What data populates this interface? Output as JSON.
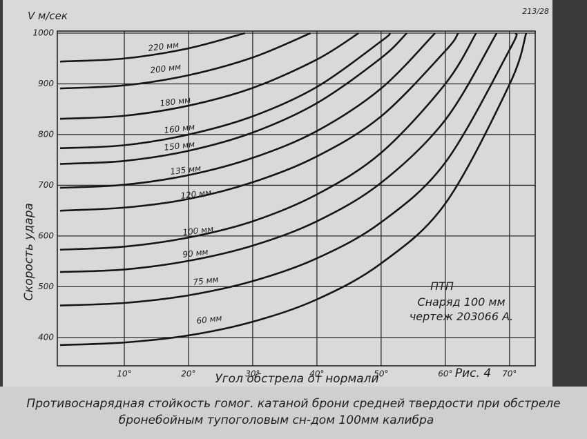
{
  "chart_data": {
    "type": "line",
    "title": "Противоснарядная стойкость гомог. катаной брони средней твердости при обстреле",
    "subtitle": "бронебойным тупоголовым сн-дом 100мм калибра",
    "sheet_number": "213/28",
    "y_axis_unit": "V м/сек",
    "y_label": "Скорость удара",
    "x_label": "Угол обстрела от нормали",
    "figure_label": "Рис. 4",
    "annotation": [
      "ПТП",
      "Снаряд 100 мм",
      "чертеж 203066 А."
    ],
    "xlim": [
      0,
      74
    ],
    "ylim": [
      344,
      1000
    ],
    "xticks": [
      {
        "value": 10,
        "label": "10°"
      },
      {
        "value": 20,
        "label": "20°"
      },
      {
        "value": 30,
        "label": "30°"
      },
      {
        "value": 40,
        "label": "40°"
      },
      {
        "value": 50,
        "label": "50°"
      },
      {
        "value": 60,
        "label": "60°"
      },
      {
        "value": 70,
        "label": "70°"
      }
    ],
    "yticks": [
      400,
      500,
      600,
      700,
      800,
      900,
      1000
    ],
    "grid": true,
    "series": [
      {
        "name": "220 мм",
        "color": "#151515",
        "x": [
          0,
          10,
          20,
          28.8
        ],
        "values": [
          944,
          950,
          970,
          1000
        ]
      },
      {
        "name": "200 мм",
        "color": "#151515",
        "x": [
          0,
          10,
          20,
          30,
          39
        ],
        "values": [
          891,
          897,
          917,
          952,
          1000
        ]
      },
      {
        "name": "180 мм",
        "color": "#151515",
        "x": [
          0,
          10,
          20,
          30,
          40,
          46.5
        ],
        "values": [
          831,
          837,
          857,
          892,
          948,
          1000
        ]
      },
      {
        "name": "160 мм",
        "color": "#151515",
        "x": [
          0,
          10,
          20,
          30,
          40,
          50,
          51.4
        ],
        "values": [
          773,
          779,
          800,
          836,
          894,
          984,
          1000
        ]
      },
      {
        "name": "150 мм",
        "color": "#151515",
        "x": [
          0,
          10,
          20,
          30,
          40,
          50,
          54
        ],
        "values": [
          742,
          748,
          768,
          804,
          862,
          951,
          1000
        ]
      },
      {
        "name": "135 мм",
        "color": "#151515",
        "x": [
          0,
          10,
          20,
          30,
          40,
          50,
          58.4
        ],
        "values": [
          695,
          701,
          720,
          754,
          807,
          891,
          1000
        ]
      },
      {
        "name": "120 мм",
        "color": "#151515",
        "x": [
          0,
          10,
          20,
          30,
          40,
          50,
          60,
          62
        ],
        "values": [
          650,
          656,
          673,
          706,
          757,
          836,
          965,
          1000
        ]
      },
      {
        "name": "100 мм",
        "color": "#151515",
        "x": [
          0,
          10,
          20,
          30,
          40,
          50,
          60,
          64.8
        ],
        "values": [
          573,
          579,
          597,
          629,
          682,
          764,
          900,
          1000
        ]
      },
      {
        "name": "90 мм",
        "color": "#151515",
        "x": [
          0,
          10,
          20,
          30,
          40,
          50,
          60,
          68
        ],
        "values": [
          529,
          534,
          551,
          581,
          629,
          705,
          829,
          1000
        ]
      },
      {
        "name": "75 мм",
        "color": "#151515",
        "x": [
          0,
          10,
          20,
          30,
          40,
          50,
          60,
          70,
          71
        ],
        "values": [
          463,
          468,
          483,
          511,
          556,
          627,
          745,
          967,
          1000
        ]
      },
      {
        "name": "60 мм",
        "color": "#151515",
        "x": [
          0,
          10,
          20,
          30,
          40,
          50,
          60,
          70,
          72.6
        ],
        "values": [
          385,
          390,
          404,
          431,
          475,
          546,
          664,
          899,
          1000
        ]
      }
    ]
  }
}
